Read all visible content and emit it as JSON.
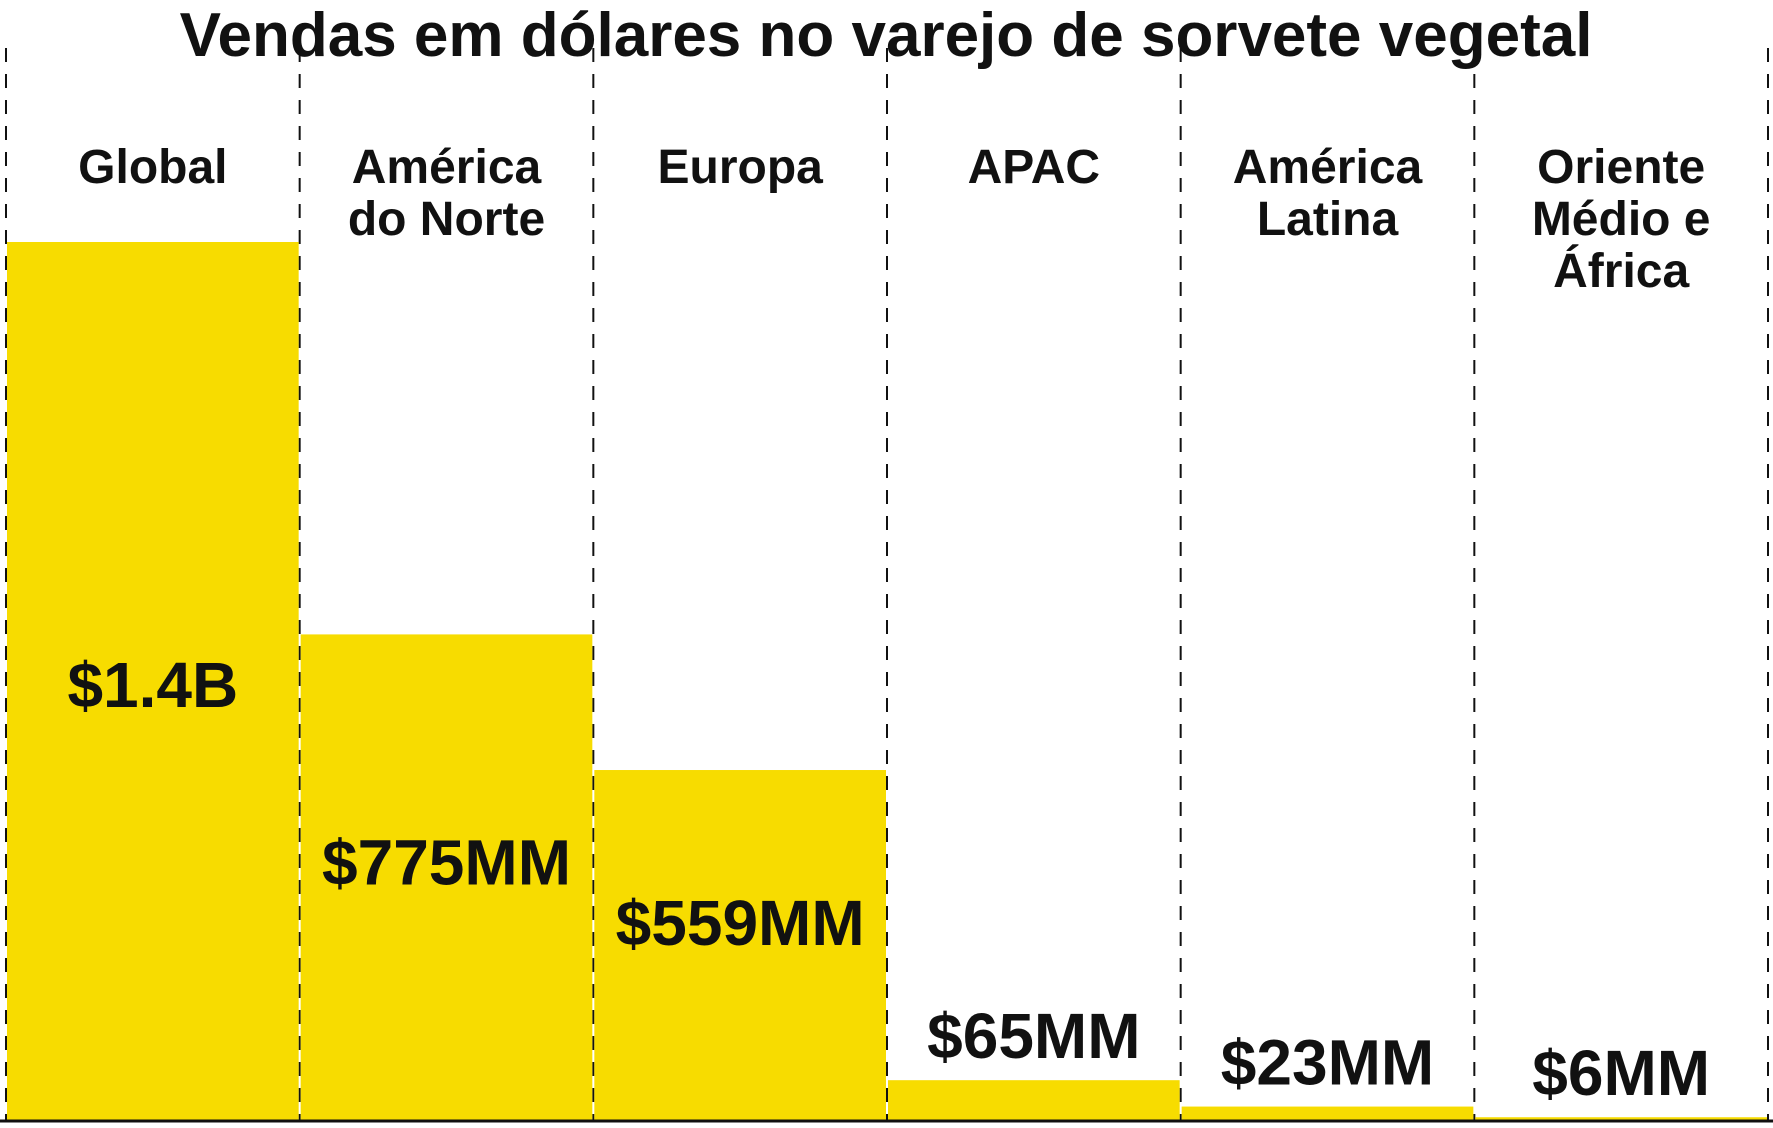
{
  "chart_data": {
    "type": "bar",
    "title": "Vendas em dólares no varejo de sorvete vegetal",
    "xlabel": "",
    "ylabel": "",
    "categories": [
      [
        "Global"
      ],
      [
        "América",
        "do Norte"
      ],
      [
        "Europa"
      ],
      [
        "APAC"
      ],
      [
        "América",
        "Latina"
      ],
      [
        "Oriente",
        "Médio e",
        "África"
      ]
    ],
    "values": [
      1400,
      775,
      559,
      65,
      23,
      6
    ],
    "value_labels": [
      "$1.4B",
      "$775MM",
      "$559MM",
      "$65MM",
      "$23MM",
      "$6MM"
    ],
    "units": "USD millions",
    "grid": false,
    "legend": "none",
    "colors": {
      "bar": "#F7DC00",
      "text": "#111111",
      "divider": "#111111",
      "background": "#FFFFFF"
    }
  }
}
